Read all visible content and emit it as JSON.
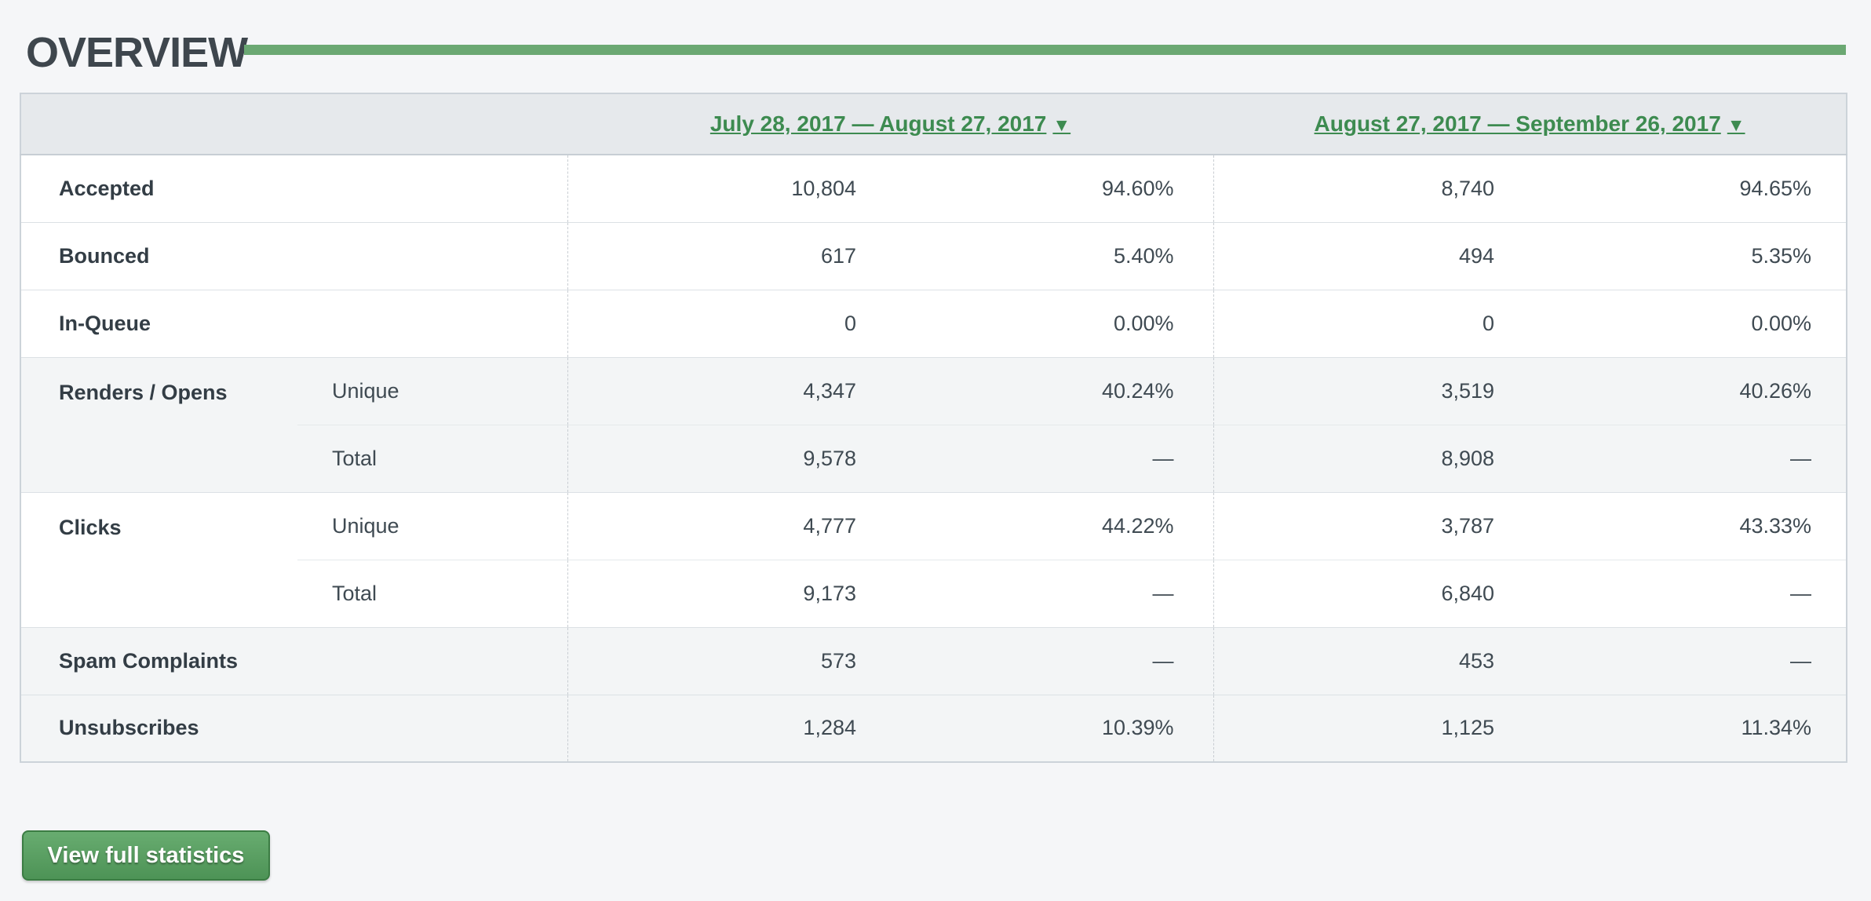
{
  "page": {
    "title": "OVERVIEW"
  },
  "colors": {
    "accent_green": "#6ba873",
    "link_green": "#3d8b50",
    "header_bg": "#e6e9ec",
    "zebra_row_bg": "#f3f5f6",
    "button_gradient_top": "#68ac70",
    "button_gradient_bottom": "#4d9356",
    "button_border": "#3b7c43",
    "page_bg": "#f5f6f8"
  },
  "table": {
    "periods": [
      {
        "label": "July 28, 2017 — August 27, 2017",
        "sort_indicator": "▼"
      },
      {
        "label": "August 27, 2017 — September 26, 2017",
        "sort_indicator": "▼"
      }
    ],
    "rows": [
      {
        "label": "Accepted",
        "sublabel": "",
        "rowspan": 1,
        "zebra": false,
        "group_start": true,
        "inner": false,
        "cells": [
          {
            "count": "10,804",
            "pct": "94.60%"
          },
          {
            "count": "8,740",
            "pct": "94.65%"
          }
        ]
      },
      {
        "label": "Bounced",
        "sublabel": "",
        "rowspan": 1,
        "zebra": false,
        "group_start": true,
        "inner": false,
        "cells": [
          {
            "count": "617",
            "pct": "5.40%"
          },
          {
            "count": "494",
            "pct": "5.35%"
          }
        ]
      },
      {
        "label": "In-Queue",
        "sublabel": "",
        "rowspan": 1,
        "zebra": false,
        "group_start": true,
        "inner": false,
        "cells": [
          {
            "count": "0",
            "pct": "0.00%"
          },
          {
            "count": "0",
            "pct": "0.00%"
          }
        ]
      },
      {
        "label": "Renders / Opens",
        "sublabel": "Unique",
        "rowspan": 2,
        "zebra": true,
        "group_start": true,
        "inner": false,
        "cells": [
          {
            "count": "4,347",
            "pct": "40.24%"
          },
          {
            "count": "3,519",
            "pct": "40.26%"
          }
        ]
      },
      {
        "label": null,
        "sublabel": "Total",
        "rowspan": 0,
        "zebra": true,
        "group_start": false,
        "inner": true,
        "cells": [
          {
            "count": "9,578",
            "pct": "—"
          },
          {
            "count": "8,908",
            "pct": "—"
          }
        ]
      },
      {
        "label": "Clicks",
        "sublabel": "Unique",
        "rowspan": 2,
        "zebra": false,
        "group_start": true,
        "inner": false,
        "cells": [
          {
            "count": "4,777",
            "pct": "44.22%"
          },
          {
            "count": "3,787",
            "pct": "43.33%"
          }
        ]
      },
      {
        "label": null,
        "sublabel": "Total",
        "rowspan": 0,
        "zebra": false,
        "group_start": false,
        "inner": true,
        "cells": [
          {
            "count": "9,173",
            "pct": "—"
          },
          {
            "count": "6,840",
            "pct": "—"
          }
        ]
      },
      {
        "label": "Spam Complaints",
        "sublabel": "",
        "rowspan": 1,
        "zebra": true,
        "group_start": true,
        "inner": false,
        "cells": [
          {
            "count": "573",
            "pct": "—"
          },
          {
            "count": "453",
            "pct": "—"
          }
        ]
      },
      {
        "label": "Unsubscribes",
        "sublabel": "",
        "rowspan": 1,
        "zebra": true,
        "group_start": true,
        "inner": false,
        "cells": [
          {
            "count": "1,284",
            "pct": "10.39%"
          },
          {
            "count": "1,125",
            "pct": "11.34%"
          }
        ]
      }
    ]
  },
  "footer": {
    "button_label": "View full statistics"
  }
}
